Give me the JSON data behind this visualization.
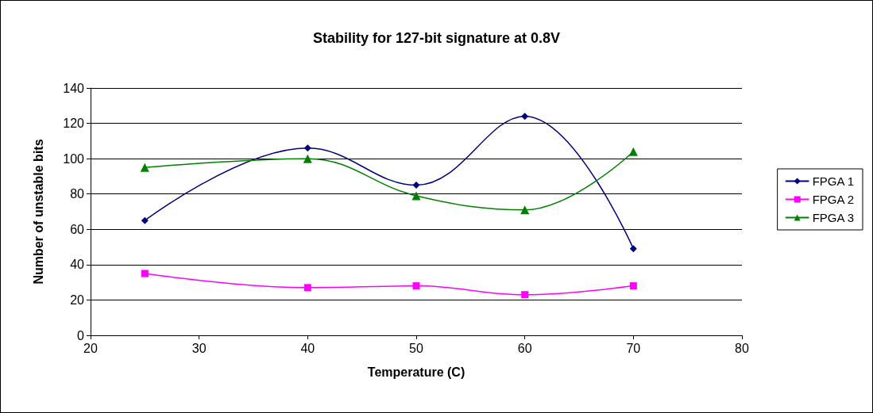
{
  "chart_data": {
    "type": "line",
    "title": "Stability for 127-bit signature at 0.8V",
    "xlabel": "Temperature (C)",
    "ylabel": "Number of unstable bits",
    "x": [
      25,
      40,
      50,
      60,
      70
    ],
    "series": [
      {
        "name": "FPGA 1",
        "color": "#000080",
        "marker": "diamond",
        "values": [
          65,
          106,
          85,
          124,
          49
        ]
      },
      {
        "name": "FPGA 2",
        "color": "#ff00ff",
        "marker": "square",
        "values": [
          35,
          27,
          28,
          23,
          28
        ]
      },
      {
        "name": "FPGA 3",
        "color": "#008000",
        "marker": "triangle",
        "values": [
          95,
          100,
          79,
          71,
          104
        ]
      }
    ],
    "xlim": [
      20,
      80
    ],
    "xticks": [
      20,
      30,
      40,
      50,
      60,
      70,
      80
    ],
    "ylim": [
      0,
      140
    ],
    "yticks": [
      0,
      20,
      40,
      60,
      80,
      100,
      120,
      140
    ],
    "grid": "y",
    "legend": "right",
    "line_style": "solid"
  }
}
